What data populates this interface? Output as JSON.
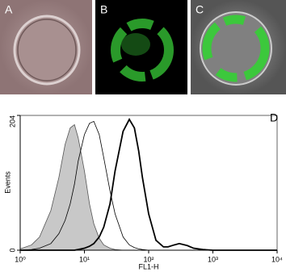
{
  "panels": [
    {
      "label": "A"
    },
    {
      "label": "B"
    },
    {
      "label": "C"
    }
  ],
  "chart_data": {
    "type": "line",
    "panel_label": "D",
    "x_label": "FL1-H",
    "y_label": "Events",
    "xscale": "log",
    "xlim": [
      1,
      10000
    ],
    "xticks": [
      {
        "value": 1,
        "label": "10⁰"
      },
      {
        "value": 10,
        "label": "10¹"
      },
      {
        "value": 100,
        "label": "10²"
      },
      {
        "value": 1000,
        "label": "10³"
      },
      {
        "value": 10000,
        "label": "10⁴"
      }
    ],
    "ylim": [
      0,
      204
    ],
    "yticks": [
      0,
      204
    ],
    "x": [
      1,
      1.5,
      2,
      3,
      4,
      5,
      6,
      7,
      8,
      10,
      12,
      14,
      17,
      20,
      25,
      30,
      40,
      50,
      60,
      70,
      80,
      100,
      130,
      170,
      200,
      250,
      300,
      400,
      500,
      700,
      1000,
      10000
    ],
    "series": [
      {
        "color": "#555555",
        "fill": "#c8c8c8",
        "line_width": 0.8,
        "values": [
          2,
          8,
          20,
          60,
          110,
          160,
          185,
          190,
          170,
          120,
          70,
          40,
          18,
          8,
          3,
          1,
          0,
          0,
          0,
          0,
          0,
          0,
          0,
          0,
          0,
          0,
          0,
          0,
          0,
          0,
          0,
          0
        ]
      },
      {
        "color": "#000000",
        "fill": "none",
        "line_width": 0.8,
        "values": [
          0,
          1,
          3,
          10,
          25,
          45,
          70,
          100,
          135,
          175,
          192,
          195,
          175,
          140,
          90,
          55,
          20,
          8,
          4,
          2,
          1,
          0,
          0,
          0,
          0,
          0,
          0,
          0,
          0,
          0,
          0,
          0
        ]
      },
      {
        "color": "#000000",
        "fill": "none",
        "line_width": 1.8,
        "values": [
          0,
          0,
          0,
          0,
          0,
          0,
          0,
          0,
          1,
          3,
          6,
          10,
          20,
          35,
          70,
          120,
          180,
          198,
          185,
          150,
          110,
          55,
          15,
          5,
          5,
          8,
          10,
          7,
          3,
          1,
          0,
          0
        ]
      }
    ]
  }
}
